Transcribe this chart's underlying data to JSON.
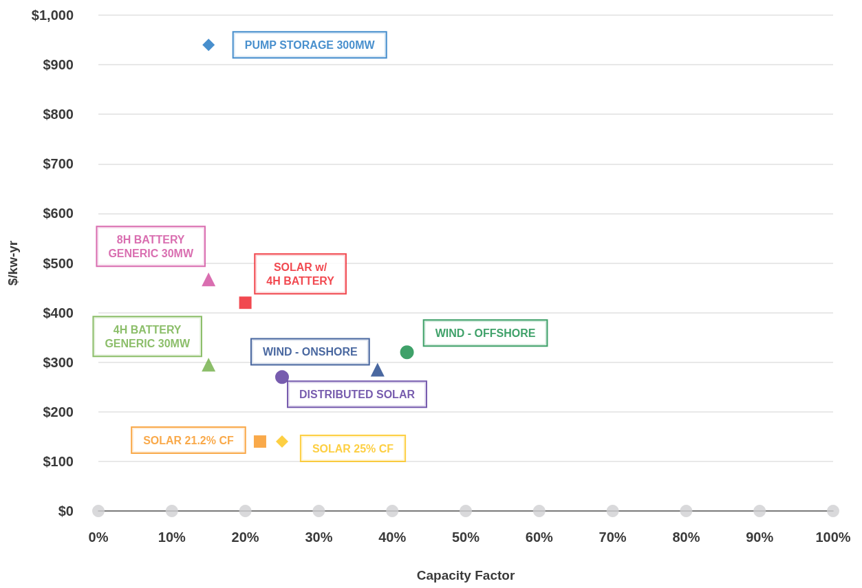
{
  "chart_data": {
    "type": "scatter",
    "xlabel": "Capacity Factor",
    "ylabel": "$/kw-yr",
    "xlim": [
      0,
      100
    ],
    "ylim": [
      0,
      1000
    ],
    "xticks": [
      {
        "value": 0,
        "label": "0%"
      },
      {
        "value": 10,
        "label": "10%"
      },
      {
        "value": 20,
        "label": "20%"
      },
      {
        "value": 30,
        "label": "30%"
      },
      {
        "value": 40,
        "label": "40%"
      },
      {
        "value": 50,
        "label": "50%"
      },
      {
        "value": 60,
        "label": "60%"
      },
      {
        "value": 70,
        "label": "70%"
      },
      {
        "value": 80,
        "label": "80%"
      },
      {
        "value": 90,
        "label": "90%"
      },
      {
        "value": 100,
        "label": "100%"
      }
    ],
    "yticks": [
      {
        "value": 0,
        "label": "$0"
      },
      {
        "value": 100,
        "label": "$100"
      },
      {
        "value": 200,
        "label": "$200"
      },
      {
        "value": 300,
        "label": "$300"
      },
      {
        "value": 400,
        "label": "$400"
      },
      {
        "value": 500,
        "label": "$500"
      },
      {
        "value": 600,
        "label": "$600"
      },
      {
        "value": 700,
        "label": "$700"
      },
      {
        "value": 800,
        "label": "$800"
      },
      {
        "value": 900,
        "label": "$900"
      },
      {
        "value": 1000,
        "label": "$1,000"
      }
    ],
    "grid": "y",
    "series": [
      {
        "name": "PUMP STORAGE 300MW",
        "color": "#1a73c0",
        "marker": "diamond",
        "x": [
          15
        ],
        "values": [
          940
        ]
      },
      {
        "name": "8H BATTERY\nGENERIC 30MW",
        "color": "#d04a9c",
        "marker": "triangle",
        "x": [
          15
        ],
        "values": [
          467
        ]
      },
      {
        "name": "SOLAR w/\n4H BATTERY",
        "color": "#ed1c24",
        "marker": "square",
        "x": [
          20
        ],
        "values": [
          420
        ]
      },
      {
        "name": "4H BATTERY\nGENERIC 30MW",
        "color": "#6fae45",
        "marker": "triangle",
        "x": [
          15
        ],
        "values": [
          295
        ]
      },
      {
        "name": "WIND - OFFSHORE",
        "color": "#0f8a43",
        "marker": "circle",
        "x": [
          42
        ],
        "values": [
          320
        ]
      },
      {
        "name": "WIND - ONSHORE",
        "color": "#1d4288",
        "marker": "triangle",
        "x": [
          38
        ],
        "values": [
          285
        ]
      },
      {
        "name": "DISTRIBUTED SOLAR",
        "color": "#55339a",
        "marker": "circle",
        "x": [
          25
        ],
        "values": [
          270
        ]
      },
      {
        "name": "SOLAR 21.2% CF",
        "color": "#f7941d",
        "marker": "square",
        "x": [
          22
        ],
        "values": [
          140
        ]
      },
      {
        "name": "SOLAR 25% CF",
        "color": "#fcc314",
        "marker": "diamond",
        "x": [
          25
        ],
        "values": [
          140
        ]
      },
      {
        "color": "#d0d0d2",
        "marker": "circle",
        "x": [
          0,
          10,
          20,
          30,
          40,
          50,
          60,
          70,
          80,
          90,
          100
        ],
        "values": [
          0,
          0,
          0,
          0,
          0,
          0,
          0,
          0,
          0,
          0,
          0
        ]
      }
    ]
  }
}
